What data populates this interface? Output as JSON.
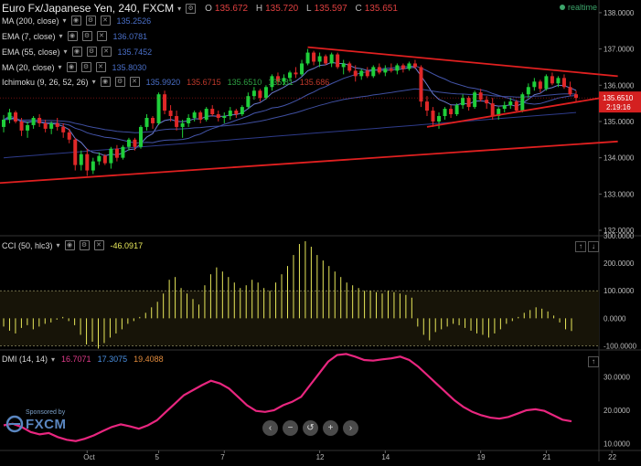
{
  "header": {
    "title": "Euro Fx/Japanese Yen, 240, FXCM",
    "ohlc": [
      {
        "k": "O",
        "v": "135.672"
      },
      {
        "k": "H",
        "v": "135.720"
      },
      {
        "k": "L",
        "v": "135.597"
      },
      {
        "k": "C",
        "v": "135.651"
      }
    ],
    "realtime": "realtime"
  },
  "indicators": [
    {
      "name": "MA (200, close)",
      "values": [
        "135.2526"
      ],
      "colors": [
        "#4a6fc8"
      ]
    },
    {
      "name": "EMA (7, close)",
      "values": [
        "136.0781"
      ],
      "colors": [
        "#4a6fc8"
      ]
    },
    {
      "name": "EMA (55, close)",
      "values": [
        "135.7452"
      ],
      "colors": [
        "#4a6fc8"
      ]
    },
    {
      "name": "MA (20, close)",
      "values": [
        "135.8030"
      ],
      "colors": [
        "#4a6fc8"
      ]
    },
    {
      "name": "Ichimoku (9, 26, 52, 26)",
      "values": [
        "135.9920",
        "135.6715",
        "135.6510",
        "135.81",
        "135.686"
      ],
      "colors": [
        "#4a6fc8",
        "#c0392b",
        "#2ea043",
        "#2ea043",
        "#c0392b"
      ]
    }
  ],
  "cci_header": {
    "name": "CCI (50, hlc3)",
    "value": "-46.0917",
    "color": "#e8e85a"
  },
  "dmi_header": {
    "name": "DMI (14, 14)",
    "values": [
      "16.7071",
      "17.3075",
      "19.4088"
    ],
    "colors": [
      "#e03b8a",
      "#4a8fe0",
      "#e08a3b"
    ]
  },
  "navbar": {
    "buttons": [
      "‹",
      "−",
      "↺",
      "+",
      "›"
    ]
  },
  "sponsor": {
    "line1": "Sponsored by",
    "line2": "FXCM"
  },
  "last_price": "135.6510",
  "countdown": "2:19:16",
  "chart_data": [
    {
      "type": "candlestick",
      "title": "Euro Fx/Japanese Yen, 240, FXCM",
      "ylim": [
        131.85,
        138.35
      ],
      "yticks": [
        "138.0000",
        "137.0000",
        "136.0000",
        "135.0000",
        "134.0000",
        "133.0000",
        "132.0000"
      ],
      "ytick_values": [
        138,
        137,
        136,
        135,
        134,
        133,
        132
      ],
      "xticks": [
        {
          "label": "Oct",
          "index": 14
        },
        {
          "label": "5",
          "index": 26
        },
        {
          "label": "7",
          "index": 37
        },
        {
          "label": "12",
          "index": 53
        },
        {
          "label": "14",
          "index": 64
        },
        {
          "label": "19",
          "index": 80
        },
        {
          "label": "21",
          "index": 91
        },
        {
          "label": "22",
          "index": 102
        }
      ],
      "candles": [
        [
          134.85,
          135.18,
          134.7,
          135.05
        ],
        [
          135.05,
          135.35,
          134.95,
          135.25
        ],
        [
          135.25,
          135.3,
          134.95,
          135.0
        ],
        [
          135.0,
          135.1,
          134.6,
          134.75
        ],
        [
          134.75,
          135.0,
          134.55,
          134.9
        ],
        [
          134.9,
          135.15,
          134.8,
          135.1
        ],
        [
          135.1,
          135.2,
          134.85,
          134.95
        ],
        [
          134.95,
          135.05,
          134.7,
          134.8
        ],
        [
          134.8,
          135.0,
          134.65,
          134.95
        ],
        [
          134.95,
          135.1,
          134.75,
          134.85
        ],
        [
          134.85,
          134.95,
          134.55,
          134.7
        ],
        [
          134.7,
          134.8,
          134.4,
          134.5
        ],
        [
          134.5,
          134.55,
          133.65,
          133.8
        ],
        [
          133.8,
          134.2,
          133.65,
          134.1
        ],
        [
          134.1,
          134.25,
          133.5,
          133.65
        ],
        [
          133.65,
          134.0,
          133.55,
          133.9
        ],
        [
          133.9,
          134.15,
          133.8,
          134.05
        ],
        [
          134.05,
          134.1,
          133.8,
          133.85
        ],
        [
          133.85,
          134.3,
          133.7,
          134.25
        ],
        [
          134.25,
          134.35,
          133.9,
          134.0
        ],
        [
          134.0,
          134.35,
          133.95,
          134.3
        ],
        [
          134.3,
          134.55,
          134.2,
          134.5
        ],
        [
          134.5,
          134.55,
          134.2,
          134.3
        ],
        [
          134.3,
          134.9,
          134.25,
          134.85
        ],
        [
          134.85,
          135.2,
          134.75,
          135.1
        ],
        [
          135.1,
          135.15,
          134.8,
          134.95
        ],
        [
          134.95,
          135.8,
          134.9,
          135.75
        ],
        [
          135.75,
          135.85,
          135.2,
          135.3
        ],
        [
          135.3,
          135.45,
          135.0,
          135.15
        ],
        [
          135.15,
          135.3,
          134.75,
          134.85
        ],
        [
          134.85,
          135.05,
          134.55,
          134.95
        ],
        [
          134.95,
          135.2,
          134.85,
          135.1
        ],
        [
          135.1,
          135.3,
          135.0,
          135.25
        ],
        [
          135.25,
          135.3,
          134.95,
          135.05
        ],
        [
          135.05,
          135.4,
          135.0,
          135.35
        ],
        [
          135.35,
          135.45,
          135.15,
          135.2
        ],
        [
          135.2,
          135.3,
          135.0,
          135.1
        ],
        [
          135.1,
          135.25,
          134.95,
          135.15
        ],
        [
          135.15,
          135.4,
          135.05,
          135.3
        ],
        [
          135.3,
          135.35,
          135.1,
          135.2
        ],
        [
          135.2,
          135.45,
          135.15,
          135.4
        ],
        [
          135.4,
          135.8,
          135.35,
          135.7
        ],
        [
          135.7,
          135.95,
          135.6,
          135.85
        ],
        [
          135.85,
          135.9,
          135.55,
          135.65
        ],
        [
          135.65,
          136.0,
          135.6,
          135.95
        ],
        [
          135.95,
          136.3,
          135.85,
          136.25
        ],
        [
          136.25,
          136.35,
          136.0,
          136.1
        ],
        [
          136.1,
          136.3,
          136.0,
          136.2
        ],
        [
          136.2,
          136.4,
          136.1,
          136.35
        ],
        [
          136.35,
          136.5,
          136.2,
          136.3
        ],
        [
          136.3,
          136.7,
          136.25,
          136.6
        ],
        [
          136.6,
          137.0,
          136.55,
          136.9
        ],
        [
          136.9,
          136.95,
          136.55,
          136.65
        ],
        [
          136.65,
          136.9,
          136.5,
          136.8
        ],
        [
          136.8,
          136.85,
          136.55,
          136.6
        ],
        [
          136.6,
          136.9,
          136.5,
          136.85
        ],
        [
          136.85,
          136.9,
          136.45,
          136.5
        ],
        [
          136.5,
          136.7,
          136.3,
          136.6
        ],
        [
          136.6,
          136.65,
          136.35,
          136.4
        ],
        [
          136.4,
          136.55,
          136.1,
          136.25
        ],
        [
          136.25,
          136.45,
          136.15,
          136.4
        ],
        [
          136.4,
          136.5,
          136.2,
          136.25
        ],
        [
          136.25,
          136.55,
          136.2,
          136.5
        ],
        [
          136.5,
          136.6,
          136.3,
          136.35
        ],
        [
          136.35,
          136.55,
          136.25,
          136.45
        ],
        [
          136.45,
          136.6,
          136.35,
          136.4
        ],
        [
          136.4,
          136.6,
          136.3,
          136.55
        ],
        [
          136.55,
          136.6,
          136.35,
          136.45
        ],
        [
          136.45,
          136.65,
          136.4,
          136.6
        ],
        [
          136.6,
          136.7,
          136.45,
          136.5
        ],
        [
          136.5,
          136.55,
          135.4,
          135.55
        ],
        [
          135.55,
          135.7,
          135.15,
          135.3
        ],
        [
          135.3,
          135.4,
          134.85,
          135.0
        ],
        [
          135.0,
          135.25,
          134.8,
          135.15
        ],
        [
          135.15,
          135.4,
          135.05,
          135.35
        ],
        [
          135.35,
          135.45,
          135.1,
          135.2
        ],
        [
          135.2,
          135.5,
          135.15,
          135.45
        ],
        [
          135.45,
          135.75,
          135.35,
          135.65
        ],
        [
          135.65,
          135.7,
          135.3,
          135.4
        ],
        [
          135.4,
          135.85,
          135.35,
          135.8
        ],
        [
          135.8,
          135.9,
          135.55,
          135.6
        ],
        [
          135.6,
          135.7,
          135.35,
          135.5
        ],
        [
          135.5,
          135.65,
          135.05,
          135.15
        ],
        [
          135.15,
          135.4,
          135.05,
          135.35
        ],
        [
          135.35,
          135.55,
          135.25,
          135.45
        ],
        [
          135.45,
          135.65,
          135.35,
          135.55
        ],
        [
          135.55,
          135.6,
          135.25,
          135.3
        ],
        [
          135.3,
          135.8,
          135.25,
          135.75
        ],
        [
          135.75,
          136.05,
          135.65,
          135.95
        ],
        [
          135.95,
          136.2,
          135.85,
          136.1
        ],
        [
          136.1,
          136.15,
          135.8,
          135.9
        ],
        [
          135.9,
          136.3,
          135.85,
          136.25
        ],
        [
          136.25,
          136.35,
          136.0,
          136.05
        ],
        [
          136.05,
          136.25,
          135.95,
          136.2
        ],
        [
          136.2,
          136.3,
          135.9,
          135.95
        ],
        [
          135.95,
          136.1,
          135.7,
          135.75
        ],
        [
          135.75,
          135.85,
          135.55,
          135.65
        ]
      ]
    },
    {
      "type": "bar",
      "title": "CCI (50, hlc3)",
      "ylim": [
        -115,
        300
      ],
      "yticks": [
        "300.0000",
        "200.0000",
        "100.0000",
        "0.0000",
        "-100.0000"
      ],
      "ytick_values": [
        300,
        200,
        100,
        0,
        -100
      ],
      "bands": [
        100,
        -100
      ],
      "values": [
        -30,
        -45,
        -55,
        -35,
        -25,
        -40,
        -30,
        -20,
        -15,
        -5,
        5,
        -10,
        -25,
        -60,
        -95,
        -85,
        -110,
        -90,
        -70,
        -55,
        -40,
        -20,
        -10,
        5,
        20,
        40,
        60,
        90,
        140,
        150,
        110,
        90,
        70,
        50,
        120,
        160,
        185,
        170,
        150,
        130,
        110,
        120,
        140,
        130,
        110,
        100,
        130,
        160,
        190,
        230,
        270,
        280,
        260,
        230,
        210,
        190,
        170,
        150,
        130,
        120,
        110,
        100,
        100,
        95,
        90,
        100,
        95,
        90,
        85,
        75,
        -30,
        -60,
        -80,
        -50,
        -40,
        -30,
        -20,
        -25,
        -35,
        -45,
        -55,
        -60,
        -70,
        -55,
        -40,
        -20,
        -10,
        5,
        20,
        30,
        40,
        35,
        25,
        10,
        -15,
        -40,
        -46
      ],
      "color": "#e8e85a"
    },
    {
      "type": "line",
      "title": "DMI (14, 14)",
      "ylim": [
        8,
        38
      ],
      "yticks": [
        "30.0000",
        "20.0000",
        "10.0000"
      ],
      "ytick_values": [
        30,
        20,
        10
      ],
      "series": [
        {
          "color": "#e8267f",
          "values": [
            15.5,
            16.0,
            15.0,
            13.5,
            12.8,
            13.2,
            12.0,
            11.2,
            10.8,
            11.5,
            12.5,
            13.8,
            15.0,
            15.8,
            15.2,
            14.5,
            15.5,
            17.0,
            19.5,
            22.0,
            24.5,
            26.0,
            27.5,
            28.8,
            28.0,
            26.5,
            24.0,
            21.5,
            19.8,
            19.5,
            20.0,
            21.5,
            22.5,
            24.0,
            27.5,
            31.0,
            34.5,
            36.5,
            36.8,
            36.0,
            35.0,
            34.8,
            35.2,
            35.5,
            36.0,
            35.0,
            33.0,
            30.5,
            28.0,
            25.5,
            23.0,
            21.0,
            19.5,
            18.5,
            17.8,
            17.5,
            18.0,
            19.0,
            20.0,
            20.3,
            19.8,
            18.5,
            17.2,
            16.7
          ]
        }
      ]
    }
  ]
}
